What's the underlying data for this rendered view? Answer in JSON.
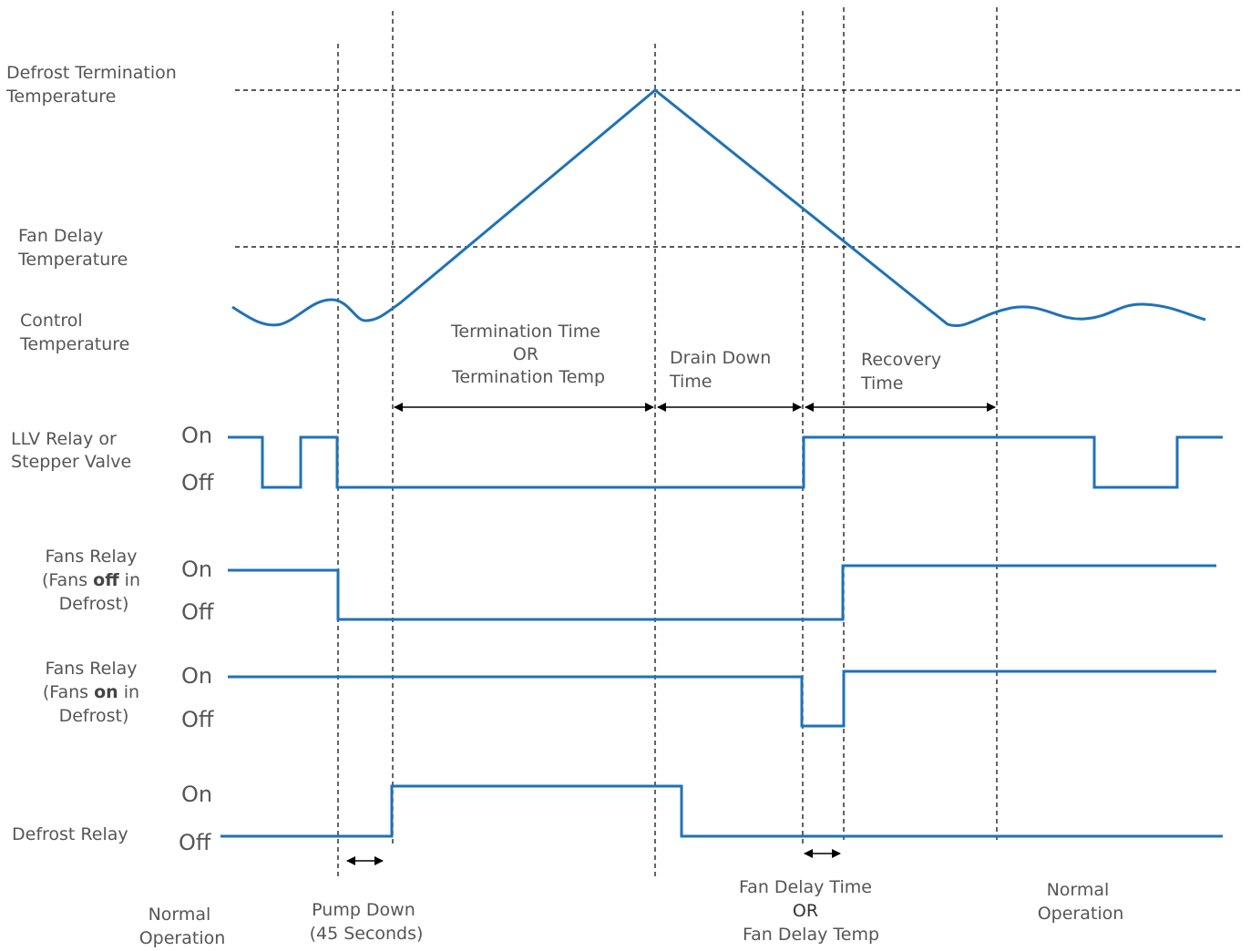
{
  "y_levels": {
    "defrost_termination_temperature": [
      "Defrost Termination",
      "Temperature"
    ],
    "fan_delay_temperature": [
      "Fan Delay",
      "Temperature"
    ],
    "control_temperature": [
      "Control",
      "Temperature"
    ]
  },
  "signals": {
    "llv_relay": [
      "LLV Relay or",
      "Stepper Valve"
    ],
    "fans_relay_off": {
      "line1": "Fans Relay",
      "line2_pre": "(Fans ",
      "line2_bold": "off",
      "line2_post": " in",
      "line3": "Defrost)"
    },
    "fans_relay_on": {
      "line1": "Fans Relay",
      "line2_pre": "(Fans ",
      "line2_bold": "on",
      "line2_post": " in",
      "line3": "Defrost)"
    },
    "defrost_relay": "Defrost Relay"
  },
  "state_labels": {
    "on": "On",
    "off": "Off"
  },
  "intervals": {
    "termination": [
      "Termination Time",
      "OR",
      "Termination Temp"
    ],
    "drain_down": [
      "Drain Down",
      "Time"
    ],
    "recovery": [
      "Recovery",
      "Time"
    ]
  },
  "bottom_labels": {
    "normal_operation_start": [
      "Normal",
      "Operation"
    ],
    "pump_down": [
      "Pump Down",
      "(45 Seconds)"
    ],
    "fan_delay": [
      "Fan Delay Time",
      "OR",
      "Fan Delay Temp"
    ],
    "normal_operation_end": [
      "Normal",
      "Operation"
    ]
  },
  "colors": {
    "signal": "#1f72b8",
    "guide": "#222222",
    "text": "#555555"
  }
}
